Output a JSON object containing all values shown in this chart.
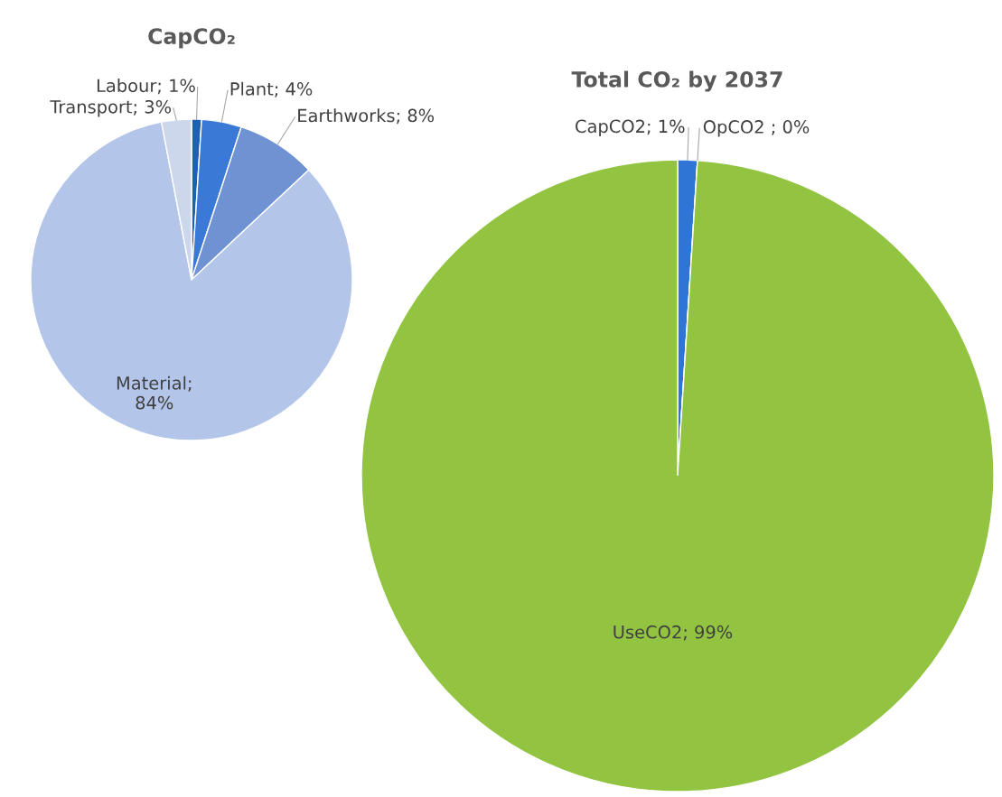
{
  "chart_data": [
    {
      "type": "pie",
      "title": "CapCO₂",
      "categories": [
        "Labour; 1%",
        "Plant; 4%",
        "Earthworks; 8%",
        "Material; 84%",
        "Transport; 3%"
      ],
      "values": [
        1,
        4,
        8,
        84,
        3
      ],
      "colors": [
        "#1f5fb8",
        "#3a7ad6",
        "#6f93d2",
        "#b3c5e8",
        "#cdd7ec"
      ]
    },
    {
      "type": "pie",
      "title": "Total CO₂ by 2037",
      "categories": [
        "CapCO2; 1%",
        "OpCO2 ; 0%",
        "UseCO2; 99%"
      ],
      "values": [
        1,
        0,
        99
      ],
      "colors": [
        "#2e75d6",
        "#c0504d",
        "#92c441"
      ]
    }
  ]
}
